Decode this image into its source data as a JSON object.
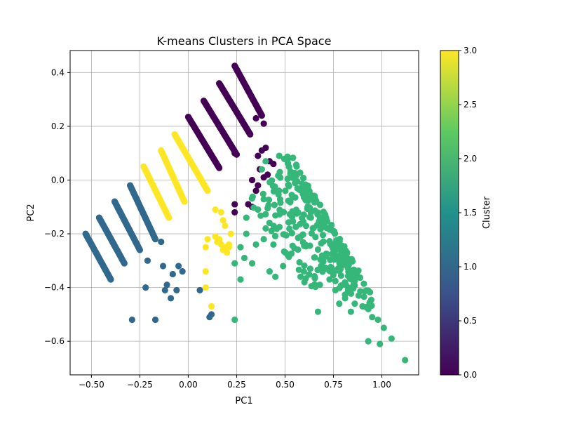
{
  "chart_data": {
    "type": "scatter",
    "title": "K-means Clusters in PCA Space",
    "xlabel": "PC1",
    "ylabel": "PC2",
    "xlim": [
      -0.61,
      1.19
    ],
    "ylim": [
      -0.725,
      0.482
    ],
    "xticks": [
      -0.5,
      -0.25,
      0.0,
      0.25,
      0.5,
      0.75,
      1.0
    ],
    "xtick_labels": [
      "−0.50",
      "−0.25",
      "0.00",
      "0.25",
      "0.50",
      "0.75",
      "1.00"
    ],
    "yticks": [
      -0.6,
      -0.4,
      -0.2,
      0.0,
      0.2,
      0.4
    ],
    "ytick_labels": [
      "−0.6",
      "−0.4",
      "−0.2",
      "0.0",
      "0.2",
      "0.4"
    ],
    "grid": true,
    "colorbar": {
      "label": "Cluster",
      "range": [
        0.0,
        3.0
      ],
      "ticks": [
        0.0,
        0.5,
        1.0,
        1.5,
        2.0,
        2.5,
        3.0
      ],
      "tick_labels": [
        "0.0",
        "0.5",
        "1.0",
        "1.5",
        "2.0",
        "2.5",
        "3.0"
      ],
      "colormap": "viridis",
      "stops": [
        "#440154",
        "#3b528b",
        "#21918c",
        "#5ec962",
        "#fde725"
      ]
    },
    "cluster_colors": [
      "#440154",
      "#31688e",
      "#35b779",
      "#fde725"
    ],
    "series": [
      {
        "cluster": 0,
        "stripes": [
          {
            "start": [
              0.0,
              0.235
            ],
            "end": [
              0.16,
              0.045
            ],
            "n": 50
          },
          {
            "start": [
              0.08,
              0.295
            ],
            "end": [
              0.25,
              0.095
            ],
            "n": 50
          },
          {
            "start": [
              0.16,
              0.36
            ],
            "end": [
              0.32,
              0.17
            ],
            "n": 50
          },
          {
            "start": [
              0.24,
              0.425
            ],
            "end": [
              0.38,
              0.24
            ],
            "n": 50
          }
        ],
        "points": [
          [
            0.39,
            0.21
          ],
          [
            0.35,
            0.23
          ],
          [
            0.24,
            0.1
          ],
          [
            0.4,
            0.12
          ],
          [
            0.38,
            0.11
          ],
          [
            0.36,
            0.09
          ],
          [
            0.42,
            0.07
          ],
          [
            0.44,
            0.06
          ],
          [
            0.41,
            0.02
          ],
          [
            0.39,
            0.01
          ],
          [
            0.37,
            0.04
          ],
          [
            0.33,
            0.0
          ],
          [
            0.36,
            -0.02
          ],
          [
            0.35,
            -0.04
          ],
          [
            0.24,
            -0.09
          ],
          [
            0.24,
            -0.12
          ],
          [
            0.33,
            -0.1
          ],
          [
            0.31,
            -0.09
          ]
        ]
      },
      {
        "cluster": 1,
        "stripes": [
          {
            "start": [
              -0.53,
              -0.2
            ],
            "end": [
              -0.4,
              -0.37
            ],
            "n": 45
          },
          {
            "start": [
              -0.46,
              -0.14
            ],
            "end": [
              -0.33,
              -0.31
            ],
            "n": 45
          },
          {
            "start": [
              -0.38,
              -0.08
            ],
            "end": [
              -0.25,
              -0.26
            ],
            "n": 45
          },
          {
            "start": [
              -0.3,
              -0.02
            ],
            "end": [
              -0.17,
              -0.22
            ],
            "n": 45
          }
        ],
        "points": [
          [
            -0.14,
            -0.23
          ],
          [
            -0.21,
            -0.3
          ],
          [
            -0.05,
            -0.32
          ],
          [
            -0.13,
            -0.32
          ],
          [
            -0.03,
            -0.34
          ],
          [
            -0.08,
            -0.35
          ],
          [
            -0.11,
            -0.39
          ],
          [
            -0.12,
            -0.41
          ],
          [
            -0.22,
            -0.4
          ],
          [
            -0.06,
            -0.41
          ],
          [
            -0.09,
            -0.44
          ],
          [
            0.06,
            -0.41
          ],
          [
            -0.29,
            -0.52
          ],
          [
            -0.17,
            -0.52
          ],
          [
            0.12,
            -0.5
          ],
          [
            0.11,
            -0.51
          ]
        ]
      },
      {
        "cluster": 2,
        "dense": [
          {
            "start": [
              0.5,
              0.09
            ],
            "end": [
              0.95,
              -0.47
            ],
            "n": 150,
            "spread": 0.028
          },
          {
            "start": [
              0.44,
              0.02
            ],
            "end": [
              0.85,
              -0.42
            ],
            "n": 90,
            "spread": 0.045
          },
          {
            "start": [
              0.34,
              -0.05
            ],
            "end": [
              0.7,
              -0.38
            ],
            "n": 60,
            "spread": 0.055
          }
        ],
        "points": [
          [
            0.38,
            0.04
          ],
          [
            0.4,
            0.07
          ],
          [
            0.47,
            0.09
          ],
          [
            0.3,
            -0.2
          ],
          [
            0.27,
            -0.25
          ],
          [
            0.29,
            -0.29
          ],
          [
            0.24,
            -0.31
          ],
          [
            0.27,
            -0.37
          ],
          [
            0.33,
            -0.31
          ],
          [
            0.42,
            -0.34
          ],
          [
            0.45,
            -0.36
          ],
          [
            0.49,
            -0.32
          ],
          [
            0.58,
            -0.36
          ],
          [
            0.6,
            -0.38
          ],
          [
            0.63,
            -0.33
          ],
          [
            0.68,
            -0.39
          ],
          [
            0.73,
            -0.37
          ],
          [
            0.76,
            -0.41
          ],
          [
            0.78,
            -0.46
          ],
          [
            0.81,
            -0.44
          ],
          [
            0.84,
            -0.49
          ],
          [
            0.86,
            -0.46
          ],
          [
            0.88,
            -0.43
          ],
          [
            0.9,
            -0.47
          ],
          [
            0.93,
            -0.48
          ],
          [
            0.95,
            -0.51
          ],
          [
            0.98,
            -0.52
          ],
          [
            1.01,
            -0.55
          ],
          [
            1.05,
            -0.59
          ],
          [
            0.93,
            -0.6
          ],
          [
            0.99,
            -0.61
          ],
          [
            0.67,
            -0.49
          ],
          [
            0.24,
            -0.52
          ],
          [
            1.12,
            -0.67
          ],
          [
            0.3,
            -0.14
          ],
          [
            0.35,
            -0.24
          ],
          [
            0.39,
            -0.22
          ],
          [
            0.44,
            -0.24
          ],
          [
            0.4,
            -0.18
          ],
          [
            0.52,
            -0.28
          ],
          [
            0.36,
            -0.11
          ]
        ]
      },
      {
        "cluster": 3,
        "stripes": [
          {
            "start": [
              -0.23,
              0.05
            ],
            "end": [
              -0.1,
              -0.14
            ],
            "n": 45
          },
          {
            "start": [
              -0.14,
              0.11
            ],
            "end": [
              -0.02,
              -0.08
            ],
            "n": 45
          },
          {
            "start": [
              -0.07,
              0.17
            ],
            "end": [
              0.1,
              -0.04
            ],
            "n": 50
          }
        ],
        "points": [
          [
            0.14,
            -0.11
          ],
          [
            0.17,
            -0.12
          ],
          [
            0.18,
            -0.15
          ],
          [
            0.19,
            -0.17
          ],
          [
            0.16,
            -0.22
          ],
          [
            0.17,
            -0.24
          ],
          [
            0.19,
            -0.25
          ],
          [
            0.21,
            -0.25
          ],
          [
            0.2,
            -0.27
          ],
          [
            0.21,
            -0.24
          ],
          [
            0.18,
            -0.26
          ],
          [
            0.14,
            -0.21
          ],
          [
            0.22,
            -0.2
          ],
          [
            0.09,
            -0.25
          ],
          [
            0.09,
            -0.34
          ],
          [
            0.09,
            -0.4
          ],
          [
            0.12,
            -0.47
          ],
          [
            0.1,
            -0.22
          ],
          [
            0.15,
            -0.23
          ]
        ]
      }
    ]
  }
}
